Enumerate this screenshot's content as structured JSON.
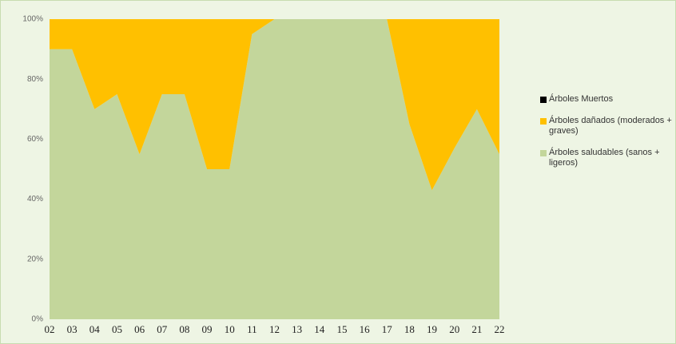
{
  "chart_data": {
    "type": "stacked_area",
    "categories": [
      "02",
      "03",
      "04",
      "05",
      "06",
      "07",
      "08",
      "09",
      "10",
      "11",
      "12",
      "13",
      "14",
      "15",
      "16",
      "17",
      "18",
      "19",
      "20",
      "21",
      "22"
    ],
    "series": [
      {
        "name": "Árboles saludables (sanos + ligeros)",
        "color": "#c3d69b",
        "values": [
          90,
          90,
          70,
          75,
          55,
          75,
          75,
          50,
          50,
          95,
          100,
          100,
          100,
          100,
          100,
          100,
          65,
          43,
          57,
          70,
          55
        ]
      },
      {
        "name": "Árboles dañados (moderados + graves)",
        "color": "#ffc000",
        "values": [
          10,
          10,
          30,
          25,
          45,
          25,
          25,
          50,
          50,
          5,
          0,
          0,
          0,
          0,
          0,
          0,
          35,
          57,
          43,
          30,
          45
        ]
      },
      {
        "name": "Árboles Muertos",
        "color": "#000000",
        "values": [
          0,
          0,
          0,
          0,
          0,
          0,
          0,
          0,
          0,
          0,
          0,
          0,
          0,
          0,
          0,
          0,
          0,
          0,
          0,
          0,
          0
        ]
      }
    ],
    "ylim": [
      0,
      100
    ],
    "yticks": [
      {
        "value": 0,
        "label": "0%"
      },
      {
        "value": 20,
        "label": "20%"
      },
      {
        "value": 40,
        "label": "40%"
      },
      {
        "value": 60,
        "label": "60%"
      },
      {
        "value": 80,
        "label": "80%"
      },
      {
        "value": 100,
        "label": "100%"
      }
    ],
    "grid": false,
    "legend": "right"
  }
}
